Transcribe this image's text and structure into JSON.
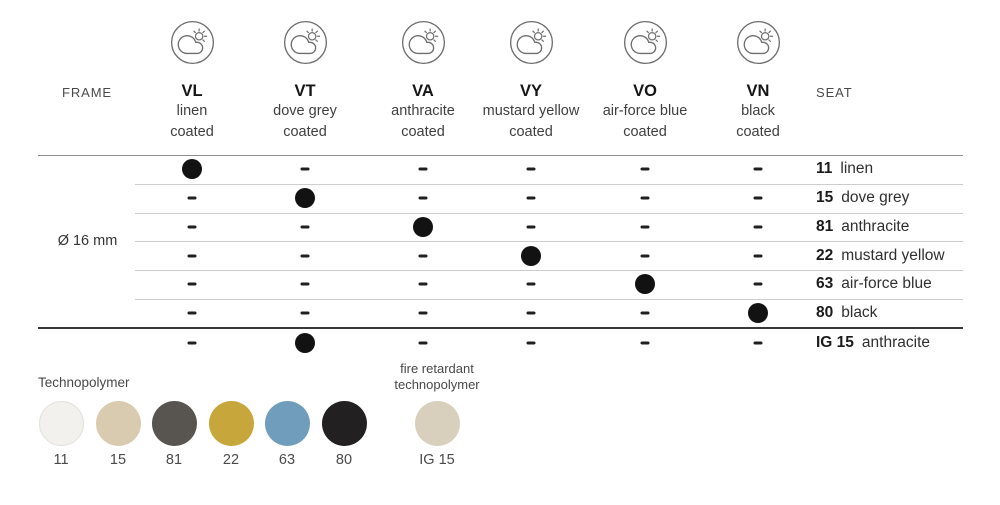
{
  "header": {
    "frame_label": "FRAME",
    "seat_label": "SEAT",
    "columns": [
      {
        "code": "VL",
        "name": "linen",
        "finish": "coated"
      },
      {
        "code": "VT",
        "name": "dove grey",
        "finish": "coated"
      },
      {
        "code": "VA",
        "name": "anthracite",
        "finish": "coated"
      },
      {
        "code": "VY",
        "name": "mustard yellow",
        "finish": "coated"
      },
      {
        "code": "VO",
        "name": "air-force blue",
        "finish": "coated"
      },
      {
        "code": "VN",
        "name": "black",
        "finish": "coated"
      }
    ]
  },
  "frame": {
    "size_label": "Ø 16 mm"
  },
  "matrix": {
    "rows": [
      {
        "seat_code": "11",
        "seat_name": "linen",
        "cells": [
          "dot",
          "dash",
          "dash",
          "dash",
          "dash",
          "dash"
        ]
      },
      {
        "seat_code": "15",
        "seat_name": "dove grey",
        "cells": [
          "dash",
          "dot",
          "dash",
          "dash",
          "dash",
          "dash"
        ]
      },
      {
        "seat_code": "81",
        "seat_name": "anthracite",
        "cells": [
          "dash",
          "dash",
          "dot",
          "dash",
          "dash",
          "dash"
        ]
      },
      {
        "seat_code": "22",
        "seat_name": "mustard yellow",
        "cells": [
          "dash",
          "dash",
          "dash",
          "dot",
          "dash",
          "dash"
        ]
      },
      {
        "seat_code": "63",
        "seat_name": "air-force blue",
        "cells": [
          "dash",
          "dash",
          "dash",
          "dash",
          "dot",
          "dash"
        ]
      },
      {
        "seat_code": "80",
        "seat_name": "black",
        "cells": [
          "dash",
          "dash",
          "dash",
          "dash",
          "dash",
          "dot"
        ]
      },
      {
        "seat_code": "IG 15",
        "seat_name": "anthracite",
        "cells": [
          "dash",
          "dot",
          "dash",
          "dash",
          "dash",
          "dash"
        ]
      }
    ]
  },
  "legend": {
    "technopolymer_label": "Technopolymer",
    "fire_retardant_label": "fire retardant technopolymer",
    "swatches": [
      {
        "code": "11",
        "color": "#f2f1ed",
        "border": "#e2e1db"
      },
      {
        "code": "15",
        "color": "#d9cbaf"
      },
      {
        "code": "81",
        "color": "#585450"
      },
      {
        "code": "22",
        "color": "#c7a73c"
      },
      {
        "code": "63",
        "color": "#6f9dbb"
      },
      {
        "code": "80",
        "color": "#222021"
      },
      {
        "code": "IG 15",
        "color": "#d8cfbd"
      }
    ]
  },
  "chart_data": {
    "type": "table",
    "columns": [
      "VL linen coated",
      "VT dove grey coated",
      "VA anthracite coated",
      "VY mustard yellow coated",
      "VO air-force blue coated",
      "VN black coated"
    ],
    "rows": [
      "11 linen",
      "15 dove grey",
      "81 anthracite",
      "22 mustard yellow",
      "63 air-force blue",
      "80 black",
      "IG 15 anthracite"
    ],
    "frame_group": "Ø 16 mm",
    "values": [
      [
        1,
        0,
        0,
        0,
        0,
        0
      ],
      [
        0,
        1,
        0,
        0,
        0,
        0
      ],
      [
        0,
        0,
        1,
        0,
        0,
        0
      ],
      [
        0,
        0,
        0,
        1,
        0,
        0
      ],
      [
        0,
        0,
        0,
        0,
        1,
        0
      ],
      [
        0,
        0,
        0,
        0,
        0,
        1
      ],
      [
        0,
        1,
        0,
        0,
        0,
        0
      ]
    ],
    "value_legend": {
      "1": "available (black dot)",
      "0": "not available (dash)"
    }
  }
}
